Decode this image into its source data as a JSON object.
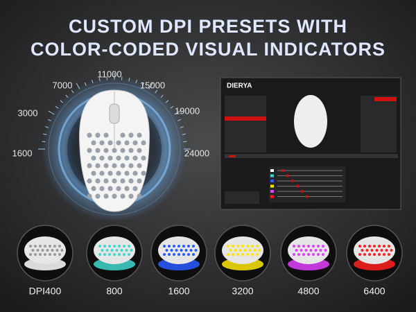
{
  "header": {
    "title_lines": [
      "CUSTOM DPI PRESETS WITH",
      "COLOR-CODED VISUAL INDICATORS"
    ]
  },
  "dial": {
    "labels": [
      "1600",
      "3000",
      "7000",
      "11000",
      "15000",
      "19000",
      "24000"
    ]
  },
  "software": {
    "brand": "DIERYA"
  },
  "presets": [
    {
      "label": "DPI400",
      "color": "#ffffff"
    },
    {
      "label": "800",
      "color": "#3fd8d0"
    },
    {
      "label": "1600",
      "color": "#2a5cff"
    },
    {
      "label": "3200",
      "color": "#ffe600"
    },
    {
      "label": "4800",
      "color": "#e040ff"
    },
    {
      "label": "6400",
      "color": "#ff2020"
    }
  ]
}
